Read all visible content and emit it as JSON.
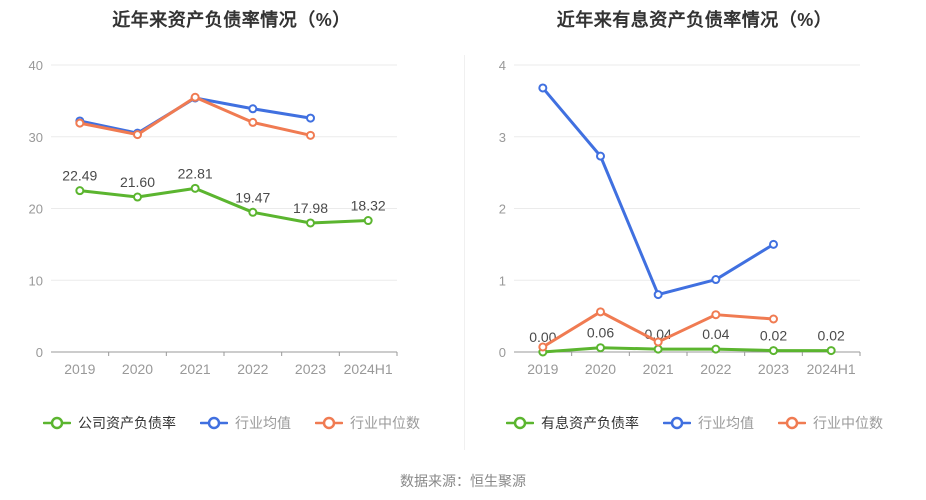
{
  "source": {
    "text": "数据来源：恒生聚源"
  },
  "colors": {
    "green": "#5BB52F",
    "blue": "#4070E0",
    "orange": "#F07B52",
    "axis": "#999999",
    "grid": "#EBEBEB",
    "title": "#333333",
    "label": "#4A4A4A"
  },
  "chart_data": [
    {
      "type": "line",
      "title": "近年来资产负债率情况（%）",
      "categories": [
        "2019",
        "2020",
        "2021",
        "2022",
        "2023",
        "2024H1"
      ],
      "ylim": [
        0,
        40
      ],
      "yticks": [
        0,
        10,
        20,
        30,
        40
      ],
      "grid": true,
      "legend_position": "bottom",
      "series": [
        {
          "key": "company-debt-ratio",
          "name": "公司资产负债率",
          "color_key": "green",
          "values": [
            22.49,
            21.6,
            22.81,
            19.47,
            17.98,
            18.32
          ],
          "labels": [
            "22.49",
            "21.60",
            "22.81",
            "19.47",
            "17.98",
            "18.32"
          ]
        },
        {
          "key": "industry-average",
          "name": "行业均值",
          "color_key": "blue",
          "values": [
            32.2,
            30.5,
            35.4,
            33.9,
            32.6,
            null
          ]
        },
        {
          "key": "industry-median",
          "name": "行业中位数",
          "color_key": "orange",
          "values": [
            31.9,
            30.3,
            35.5,
            32.0,
            30.2,
            null
          ]
        }
      ]
    },
    {
      "type": "line",
      "title": "近年来有息资产负债率情况（%）",
      "categories": [
        "2019",
        "2020",
        "2021",
        "2022",
        "2023",
        "2024H1"
      ],
      "ylim": [
        0,
        4
      ],
      "yticks": [
        0,
        1,
        2,
        3,
        4
      ],
      "grid": true,
      "legend_position": "bottom",
      "series": [
        {
          "key": "interest-bearing-debt-ratio",
          "name": "有息资产负债率",
          "color_key": "green",
          "values": [
            0.0,
            0.06,
            0.04,
            0.04,
            0.02,
            0.02
          ],
          "labels": [
            "0.00",
            "0.06",
            "0.04",
            "0.04",
            "0.02",
            "0.02"
          ]
        },
        {
          "key": "industry-average",
          "name": "行业均值",
          "color_key": "blue",
          "values": [
            3.68,
            2.73,
            0.8,
            1.01,
            1.5,
            null
          ]
        },
        {
          "key": "industry-median",
          "name": "行业中位数",
          "color_key": "orange",
          "values": [
            0.07,
            0.56,
            0.14,
            0.52,
            0.46,
            null
          ]
        }
      ]
    }
  ]
}
